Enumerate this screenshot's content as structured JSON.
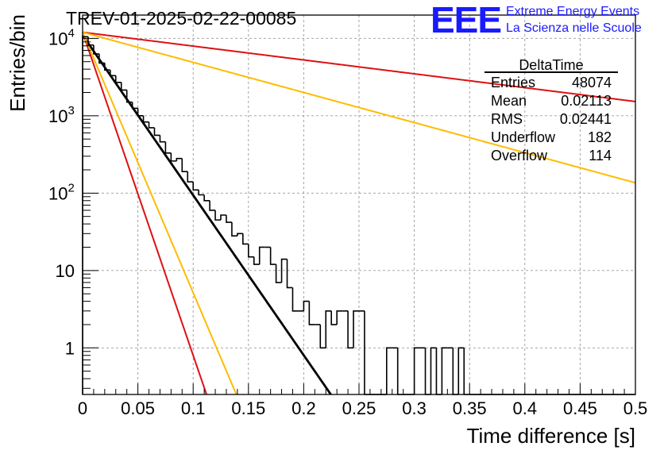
{
  "chart_data": {
    "type": "histogram",
    "title": "TREV-01-2025-02-22-00085",
    "xlabel": "Time difference [s]",
    "ylabel": "Entries/bin",
    "xlim": [
      0,
      0.5
    ],
    "ylim": [
      0.25,
      20000
    ],
    "yscale": "log",
    "grid": true,
    "x_ticks": [
      {
        "value": 0,
        "label": "0"
      },
      {
        "value": 0.05,
        "label": "0.05"
      },
      {
        "value": 0.1,
        "label": "0.1"
      },
      {
        "value": 0.15,
        "label": "0.15"
      },
      {
        "value": 0.2,
        "label": "0.2"
      },
      {
        "value": 0.25,
        "label": "0.25"
      },
      {
        "value": 0.3,
        "label": "0.3"
      },
      {
        "value": 0.35,
        "label": "0.35"
      },
      {
        "value": 0.4,
        "label": "0.4"
      },
      {
        "value": 0.45,
        "label": "0.45"
      },
      {
        "value": 0.5,
        "label": "0.5"
      }
    ],
    "y_ticks": [
      {
        "value": 1,
        "base": "1",
        "exp": ""
      },
      {
        "value": 10,
        "base": "10",
        "exp": ""
      },
      {
        "value": 100,
        "base": "10",
        "exp": "2"
      },
      {
        "value": 1000,
        "base": "10",
        "exp": "3"
      },
      {
        "value": 10000,
        "base": "10",
        "exp": "4"
      }
    ],
    "histogram": {
      "bin_width": 0.005,
      "x_start": 0,
      "counts": [
        10500,
        8200,
        6300,
        4800,
        3900,
        3300,
        2700,
        2150,
        1500,
        1250,
        1000,
        830,
        700,
        560,
        460,
        330,
        260,
        280,
        190,
        140,
        110,
        95,
        80,
        60,
        45,
        52,
        42,
        28,
        30,
        22,
        15,
        12,
        20,
        20,
        12,
        7,
        14,
        6,
        3,
        3,
        4,
        2,
        2,
        1,
        3,
        2,
        3,
        3,
        1,
        3,
        3,
        0,
        0,
        0,
        0,
        1,
        1,
        0,
        0,
        0,
        1,
        1,
        0,
        1,
        0,
        1,
        1,
        0,
        1,
        0,
        0,
        0,
        0,
        0,
        0,
        0,
        0,
        0,
        0,
        0,
        0,
        0,
        0,
        0,
        0,
        0,
        0,
        0,
        0,
        0,
        0,
        0,
        0,
        0,
        0,
        0,
        0,
        0,
        0,
        0
      ],
      "color": "#000000"
    },
    "fit_lines": [
      {
        "color": "#000000",
        "A": 11000,
        "tau": 0.021
      },
      {
        "color": "#dd1111",
        "A": 12000,
        "tau": 0.0104
      },
      {
        "color": "#ffbb00",
        "A": 12000,
        "tau": 0.0129
      },
      {
        "color": "#dd1111",
        "A": 12000,
        "tau": 0.2425
      },
      {
        "color": "#ffbb00",
        "A": 12000,
        "tau": 0.1116
      }
    ],
    "stats_box": {
      "title": "DeltaTime",
      "rows": [
        {
          "label": "Entries",
          "value": "48074"
        },
        {
          "label": "Mean",
          "value": "0.02113"
        },
        {
          "label": "RMS",
          "value": "0.02441"
        },
        {
          "label": "Underflow",
          "value": "182"
        },
        {
          "label": "Overflow",
          "value": "114"
        }
      ]
    }
  },
  "logo": {
    "letters": "EEE",
    "line1": "Extreme Energy Events",
    "line2": "La Scienza nelle Scuole"
  },
  "colors": {
    "logo": "#1a1aff",
    "grid": "#9a9a9a"
  }
}
